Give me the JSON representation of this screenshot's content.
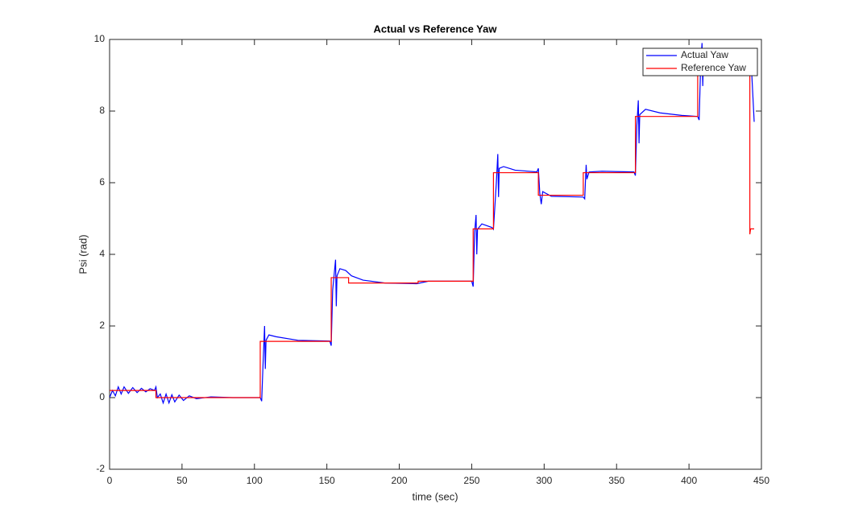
{
  "chart_data": {
    "type": "line",
    "title": "Actual vs Reference Yaw",
    "x_label": "time (sec)",
    "y_label": "Psi (rad)",
    "xlim": [
      0,
      450
    ],
    "ylim": [
      -2,
      10
    ],
    "xticks": [
      0,
      50,
      100,
      150,
      200,
      250,
      300,
      350,
      400,
      450
    ],
    "yticks": [
      -2,
      0,
      2,
      4,
      6,
      8,
      10
    ],
    "legend": "top-right",
    "series": [
      {
        "name": "Actual Yaw",
        "color": "#0000ff",
        "x": [
          0,
          2,
          4,
          6,
          8,
          10,
          13,
          16,
          19,
          22,
          25,
          28,
          31,
          32,
          33,
          35,
          37,
          39,
          41,
          43,
          45,
          48,
          51,
          55,
          60,
          70,
          85,
          104,
          105,
          106,
          107,
          107.5,
          108,
          110,
          115,
          130,
          152,
          153,
          154,
          156,
          156.5,
          157,
          159,
          163,
          167,
          175,
          190,
          212,
          220,
          250,
          251,
          252,
          253,
          253.5,
          254,
          257,
          264,
          265,
          267,
          268,
          268.5,
          269,
          272,
          280,
          295,
          296,
          297,
          298,
          299,
          305,
          327,
          328,
          329,
          329.5,
          331,
          340,
          362,
          363,
          364,
          365,
          365.5,
          366,
          370,
          380,
          395,
          406,
          407,
          408,
          409,
          409.5,
          410,
          415,
          430,
          443,
          445
        ],
        "values": [
          0,
          0.2,
          0.05,
          0.3,
          0.1,
          0.3,
          0.12,
          0.28,
          0.14,
          0.26,
          0.16,
          0.25,
          0.2,
          0.3,
          0,
          0.1,
          -0.15,
          0.1,
          -0.15,
          0.08,
          -0.12,
          0.07,
          -0.08,
          0.05,
          -0.03,
          0.02,
          0,
          0,
          -0.1,
          1,
          2,
          0.8,
          1.6,
          1.75,
          1.7,
          1.6,
          1.58,
          1.45,
          3,
          3.85,
          2.55,
          3.4,
          3.6,
          3.55,
          3.4,
          3.28,
          3.2,
          3.18,
          3.25,
          3.25,
          3.1,
          4.6,
          5.1,
          4,
          4.7,
          4.85,
          4.75,
          4.7,
          6,
          6.8,
          5.6,
          6.4,
          6.45,
          6.35,
          6.3,
          6.4,
          5.7,
          5.4,
          5.75,
          5.62,
          5.6,
          5.55,
          6.5,
          6.1,
          6.3,
          6.32,
          6.3,
          6.2,
          7.6,
          8.3,
          7.1,
          7.9,
          8.05,
          7.95,
          7.88,
          7.85,
          7.75,
          9.2,
          9.9,
          8.7,
          9.5,
          9.6,
          9.45,
          9.3,
          7.7
        ]
      },
      {
        "name": "Reference Yaw",
        "color": "#ff0000",
        "x": [
          0,
          32,
          32,
          104,
          104,
          153,
          153,
          165,
          165,
          213,
          213,
          251,
          251,
          265,
          265,
          296,
          296,
          327,
          327,
          363,
          363,
          406,
          406,
          442,
          442,
          442.5,
          445
        ],
        "values": [
          0.2,
          0.2,
          0,
          0,
          1.57,
          1.57,
          3.35,
          3.35,
          3.2,
          3.2,
          3.25,
          3.25,
          4.71,
          4.71,
          6.28,
          6.28,
          5.65,
          5.65,
          6.28,
          6.28,
          7.85,
          7.85,
          9.42,
          9.42,
          4.56,
          4.71,
          4.71
        ]
      }
    ]
  }
}
